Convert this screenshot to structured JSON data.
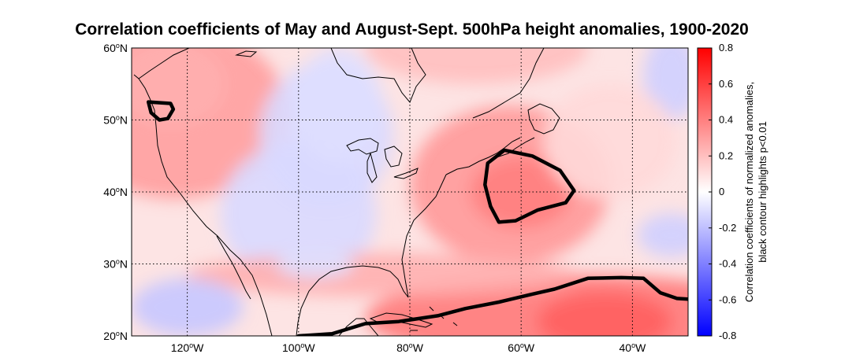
{
  "title": "Correlation coefficients of May and August-Sept. 500hPa height anomalies, 1900-2020",
  "colorbar": {
    "label_line1": "Correlation coefficients of normalized anomalies,",
    "label_line2": "black contour highlights p<0.01",
    "ticks": [
      "0.8",
      "0.6",
      "0.4",
      "0.2",
      "0",
      "-0.2",
      "-0.4",
      "-0.6",
      "-0.8"
    ],
    "range": [
      -0.8,
      0.8
    ]
  },
  "chart_data": {
    "type": "heatmap",
    "title": "Correlation coefficients of May and August-Sept. 500hPa height anomalies, 1900-2020",
    "lon_range": [
      -130,
      -30
    ],
    "lat_range": [
      20,
      60
    ],
    "grid": true,
    "lat_ticks": [
      {
        "value": 60,
        "deg": "60",
        "hemi": "N"
      },
      {
        "value": 50,
        "deg": "50",
        "hemi": "N"
      },
      {
        "value": 40,
        "deg": "40",
        "hemi": "N"
      },
      {
        "value": 30,
        "deg": "30",
        "hemi": "N"
      },
      {
        "value": 20,
        "deg": "20",
        "hemi": "N"
      }
    ],
    "lon_ticks": [
      {
        "value": -120,
        "deg": "120",
        "hemi": "W"
      },
      {
        "value": -100,
        "deg": "100",
        "hemi": "W"
      },
      {
        "value": -80,
        "deg": "80",
        "hemi": "W"
      },
      {
        "value": -60,
        "deg": "60",
        "hemi": "W"
      },
      {
        "value": -40,
        "deg": "40",
        "hemi": "W"
      }
    ],
    "colorscale": [
      "#0000ff",
      "#ffffff",
      "#ff0000"
    ],
    "significance_contours": [
      {
        "region": "pacific-northwest",
        "points": [
          [
            -127,
            52.5
          ],
          [
            -123,
            52.3
          ],
          [
            -122.5,
            51.5
          ],
          [
            -123.5,
            50.2
          ],
          [
            -125,
            50
          ],
          [
            -126.5,
            51
          ]
        ]
      },
      {
        "region": "northwest-atlantic",
        "points": [
          [
            -66,
            44
          ],
          [
            -63,
            45.8
          ],
          [
            -58,
            45
          ],
          [
            -53,
            43
          ],
          [
            -50.5,
            40.2
          ],
          [
            -52,
            38.5
          ],
          [
            -57,
            37.5
          ],
          [
            -61,
            36
          ],
          [
            -64,
            35.8
          ],
          [
            -65.5,
            38
          ],
          [
            -66.5,
            41
          ]
        ]
      },
      {
        "region": "subtropical-atlantic",
        "points": [
          [
            -100,
            20
          ],
          [
            -94,
            20.3
          ],
          [
            -88,
            21.7
          ],
          [
            -82,
            22
          ],
          [
            -75,
            22.8
          ],
          [
            -70,
            23.8
          ],
          [
            -64,
            24.7
          ],
          [
            -58,
            25.8
          ],
          [
            -54,
            26.5
          ],
          [
            -48,
            28
          ],
          [
            -42,
            28.1
          ],
          [
            -38,
            28
          ],
          [
            -35,
            26
          ],
          [
            -32,
            25.2
          ],
          [
            -30,
            25.1
          ]
        ]
      }
    ],
    "anomaly_cells": [
      {
        "lon": -122,
        "lat": 51,
        "rx": 20,
        "ry": 12,
        "value": 0.3
      },
      {
        "lon": -123,
        "lat": 55,
        "rx": 10,
        "ry": 6,
        "value": 0.25
      },
      {
        "lon": -95,
        "lat": 48,
        "rx": 12,
        "ry": 10,
        "value": -0.12
      },
      {
        "lon": -100,
        "lat": 37,
        "rx": 14,
        "ry": 10,
        "value": -0.12
      },
      {
        "lon": -93,
        "lat": 52,
        "rx": 8,
        "ry": 8,
        "value": -0.1
      },
      {
        "lon": -62,
        "lat": 41,
        "rx": 18,
        "ry": 11,
        "value": 0.32
      },
      {
        "lon": -60,
        "lat": 40,
        "rx": 9,
        "ry": 5,
        "value": 0.4
      },
      {
        "lon": -50,
        "lat": 22.5,
        "rx": 38,
        "ry": 6,
        "value": 0.42
      },
      {
        "lon": -45,
        "lat": 22,
        "rx": 12,
        "ry": 4,
        "value": 0.5
      },
      {
        "lon": -85,
        "lat": 28.5,
        "rx": 35,
        "ry": 3,
        "value": 0.25
      },
      {
        "lon": -120,
        "lat": 24,
        "rx": 10,
        "ry": 4,
        "value": -0.18
      },
      {
        "lon": -97,
        "lat": 30,
        "rx": 7,
        "ry": 2,
        "value": -0.1
      },
      {
        "lon": -33,
        "lat": 56,
        "rx": 5,
        "ry": 6,
        "value": -0.15
      },
      {
        "lon": -33,
        "lat": 34,
        "rx": 6,
        "ry": 3,
        "value": -0.15
      },
      {
        "lon": -68,
        "lat": 60,
        "rx": 20,
        "ry": 5,
        "value": 0.2
      },
      {
        "lon": -44,
        "lat": 47,
        "rx": 12,
        "ry": 8,
        "value": 0.12
      }
    ]
  }
}
